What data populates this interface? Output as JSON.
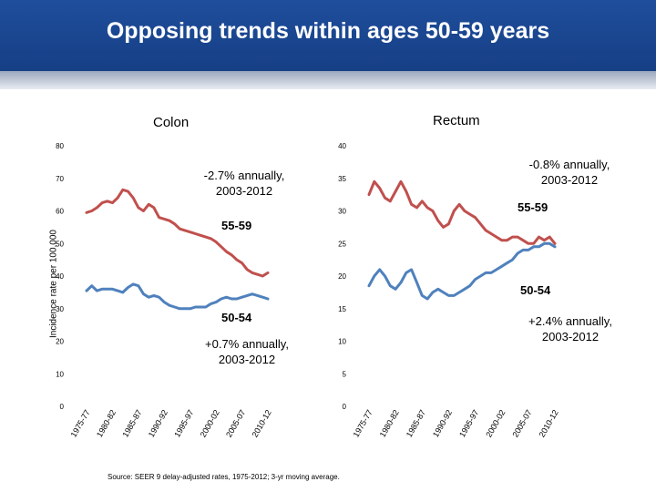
{
  "title": "Opposing trends within ages 50-59 years",
  "ylabel": "Incidence rate per 100,000",
  "source": "Source: SEER 9 delay-adjusted rates, 1975-2012; 3-yr moving average.",
  "colors": {
    "banner": "#1f4e9c",
    "series_55_59": "#c0504d",
    "series_50_54": "#4f81bd"
  },
  "chart_data": [
    {
      "type": "line",
      "title": "Colon",
      "ylabel": "Incidence rate per 100,000",
      "ylim": [
        0,
        80
      ],
      "yticks": [
        0,
        10,
        20,
        30,
        40,
        50,
        60,
        70,
        80
      ],
      "xlim": [
        1976,
        2011
      ],
      "xticks": [
        {
          "label": "1975-77",
          "x": 1976
        },
        {
          "label": "1980-82",
          "x": 1981
        },
        {
          "label": "1985-87",
          "x": 1986
        },
        {
          "label": "1990-92",
          "x": 1991
        },
        {
          "label": "1995-97",
          "x": 1996
        },
        {
          "label": "2000-02",
          "x": 2001
        },
        {
          "label": "2005-07",
          "x": 2006
        },
        {
          "label": "2010-12",
          "x": 2011
        }
      ],
      "series": [
        {
          "name": "55-59",
          "color": "#c0504d",
          "x": [
            1976,
            1977,
            1978,
            1979,
            1980,
            1981,
            1982,
            1983,
            1984,
            1985,
            1986,
            1987,
            1988,
            1989,
            1990,
            1991,
            1992,
            1993,
            1994,
            1995,
            1996,
            1997,
            1998,
            1999,
            2000,
            2001,
            2002,
            2003,
            2004,
            2005,
            2006,
            2007,
            2008,
            2009,
            2010,
            2011
          ],
          "values": [
            59.5,
            60,
            61,
            62.5,
            63,
            62.5,
            64,
            66.5,
            66,
            64,
            61,
            60,
            62,
            61,
            58,
            57.5,
            57,
            56,
            54.5,
            54,
            53.5,
            53,
            52.5,
            52,
            51.5,
            50.5,
            49,
            47.5,
            46.5,
            45,
            44,
            42,
            41,
            40.5,
            40,
            41
          ]
        },
        {
          "name": "50-54",
          "color": "#4f81bd",
          "x": [
            1976,
            1977,
            1978,
            1979,
            1980,
            1981,
            1982,
            1983,
            1984,
            1985,
            1986,
            1987,
            1988,
            1989,
            1990,
            1991,
            1992,
            1993,
            1994,
            1995,
            1996,
            1997,
            1998,
            1999,
            2000,
            2001,
            2002,
            2003,
            2004,
            2005,
            2006,
            2007,
            2008,
            2009,
            2010,
            2011
          ],
          "values": [
            35.5,
            37,
            35.5,
            36,
            36,
            36,
            35.5,
            35,
            36.5,
            37.5,
            37,
            34.5,
            33.5,
            34,
            33.5,
            32,
            31,
            30.5,
            30,
            30,
            30,
            30.5,
            30.5,
            30.5,
            31.5,
            32,
            33,
            33.5,
            33,
            33,
            33.5,
            34,
            34.5,
            34,
            33.5,
            33
          ]
        }
      ],
      "annotations": [
        {
          "text": "-2.7% annually, 2003-2012"
        },
        {
          "text": "55-59"
        },
        {
          "text": "50-54"
        },
        {
          "text": "+0.7% annually, 2003-2012"
        }
      ]
    },
    {
      "type": "line",
      "title": "Rectum",
      "ylim": [
        0,
        40
      ],
      "yticks": [
        0,
        5,
        10,
        15,
        20,
        25,
        30,
        35,
        40
      ],
      "xlim": [
        1976,
        2011
      ],
      "xticks": [
        {
          "label": "1975-77",
          "x": 1976
        },
        {
          "label": "1980-82",
          "x": 1981
        },
        {
          "label": "1985-87",
          "x": 1986
        },
        {
          "label": "1990-92",
          "x": 1991
        },
        {
          "label": "1995-97",
          "x": 1996
        },
        {
          "label": "2000-02",
          "x": 2001
        },
        {
          "label": "2005-07",
          "x": 2006
        },
        {
          "label": "2010-12",
          "x": 2011
        }
      ],
      "series": [
        {
          "name": "55-59",
          "color": "#c0504d",
          "x": [
            1976,
            1977,
            1978,
            1979,
            1980,
            1981,
            1982,
            1983,
            1984,
            1985,
            1986,
            1987,
            1988,
            1989,
            1990,
            1991,
            1992,
            1993,
            1994,
            1995,
            1996,
            1997,
            1998,
            1999,
            2000,
            2001,
            2002,
            2003,
            2004,
            2005,
            2006,
            2007,
            2008,
            2009,
            2010,
            2011
          ],
          "values": [
            32.5,
            34.5,
            33.5,
            32,
            31.5,
            33,
            34.5,
            33,
            31,
            30.5,
            31.5,
            30.5,
            30,
            28.5,
            27.5,
            28,
            30,
            31,
            30,
            29.5,
            29,
            28,
            27,
            26.5,
            26,
            25.5,
            25.5,
            26,
            26,
            25.5,
            25,
            25,
            26,
            25.5,
            26,
            25
          ]
        },
        {
          "name": "50-54",
          "color": "#4f81bd",
          "x": [
            1976,
            1977,
            1978,
            1979,
            1980,
            1981,
            1982,
            1983,
            1984,
            1985,
            1986,
            1987,
            1988,
            1989,
            1990,
            1991,
            1992,
            1993,
            1994,
            1995,
            1996,
            1997,
            1998,
            1999,
            2000,
            2001,
            2002,
            2003,
            2004,
            2005,
            2006,
            2007,
            2008,
            2009,
            2010,
            2011
          ],
          "values": [
            18.5,
            20,
            21,
            20,
            18.5,
            18,
            19,
            20.5,
            21,
            19,
            17,
            16.5,
            17.5,
            18,
            17.5,
            17,
            17,
            17.5,
            18,
            18.5,
            19.5,
            20,
            20.5,
            20.5,
            21,
            21.5,
            22,
            22.5,
            23.5,
            24,
            24,
            24.5,
            24.5,
            25,
            25,
            24.5
          ]
        }
      ],
      "annotations": [
        {
          "text": "-0.8% annually, 2003-2012"
        },
        {
          "text": "55-59"
        },
        {
          "text": "50-54"
        },
        {
          "text": "+2.4% annually, 2003-2012"
        }
      ]
    }
  ]
}
